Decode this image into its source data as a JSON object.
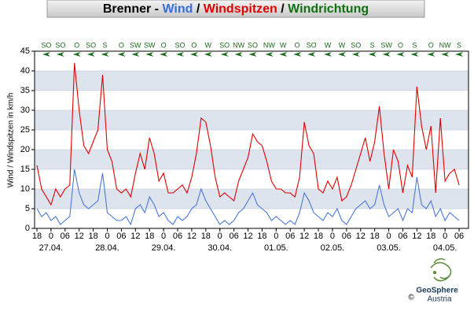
{
  "chart_data": {
    "type": "line",
    "title_parts": [
      {
        "text": "Brenner",
        "color": "#000000"
      },
      {
        "text": " - ",
        "color": "#000000"
      },
      {
        "text": "Wind",
        "color": "#3a6fd8"
      },
      {
        "text": " / ",
        "color": "#000000"
      },
      {
        "text": "Windspitzen",
        "color": "#e00000"
      },
      {
        "text": " / ",
        "color": "#000000"
      },
      {
        "text": "Windrichtung",
        "color": "#107010"
      }
    ],
    "y_label": "Wind / Windspitzen in km/h",
    "x": [
      0,
      2,
      4,
      6,
      8,
      10,
      12,
      14,
      16,
      18,
      20,
      22,
      24,
      26,
      28,
      30,
      32,
      34,
      36,
      38,
      40,
      42,
      44,
      46,
      48,
      50,
      52,
      54,
      56,
      58,
      60,
      62,
      64,
      66,
      68,
      70,
      72,
      74,
      76,
      78,
      80,
      82,
      84,
      86,
      88,
      90,
      92,
      94,
      96,
      98,
      100,
      102,
      104,
      106,
      108,
      110,
      112,
      114,
      116,
      118,
      120,
      122,
      124,
      126,
      128,
      130,
      132,
      134,
      136,
      138,
      140,
      142,
      144,
      146,
      148,
      150,
      152,
      154,
      156,
      158,
      160,
      162,
      164,
      166,
      168,
      170,
      172,
      174,
      176,
      178,
      180
    ],
    "series": [
      {
        "name": "Windspitzen",
        "color": "#e00000",
        "values": [
          16,
          10,
          8,
          6,
          10,
          8,
          10,
          11,
          42,
          30,
          21,
          19,
          22,
          25,
          39,
          20,
          17,
          10,
          9,
          10,
          8,
          14,
          19,
          15,
          23,
          19,
          12,
          14,
          9,
          9,
          10,
          11,
          9,
          13,
          19,
          28,
          27,
          21,
          13,
          8,
          9,
          8,
          7,
          12,
          15,
          18,
          24,
          22,
          21,
          17,
          12,
          10,
          10,
          9,
          9,
          8,
          13,
          27,
          21,
          19,
          10,
          9,
          12,
          10,
          13,
          7,
          8,
          11,
          15,
          19,
          23,
          17,
          22,
          31,
          19,
          10,
          20,
          17,
          9,
          16,
          13,
          36,
          26,
          20,
          26,
          9,
          28,
          12,
          14,
          15,
          11
        ]
      },
      {
        "name": "Wind",
        "color": "#4a78d8",
        "values": [
          5,
          3,
          4,
          2,
          3,
          1,
          2,
          3,
          15,
          9,
          6,
          5,
          6,
          7,
          14,
          4,
          3,
          2,
          2,
          3,
          1,
          5,
          6,
          4,
          8,
          6,
          3,
          4,
          2,
          1,
          3,
          2,
          3,
          5,
          6,
          10,
          7,
          5,
          3,
          1,
          2,
          1,
          2,
          4,
          5,
          7,
          9,
          6,
          5,
          4,
          2,
          3,
          2,
          1,
          2,
          1,
          4,
          9,
          7,
          4,
          3,
          2,
          4,
          3,
          5,
          2,
          1,
          3,
          5,
          6,
          7,
          5,
          6,
          11,
          6,
          3,
          4,
          5,
          2,
          5,
          4,
          13,
          6,
          5,
          7,
          3,
          5,
          2,
          4,
          3,
          2
        ]
      }
    ],
    "xlim": [
      -1,
      184
    ],
    "xticks": [
      {
        "value": 0,
        "label": "18"
      },
      {
        "value": 6,
        "label": "0"
      },
      {
        "value": 12,
        "label": "06"
      },
      {
        "value": 18,
        "label": "12"
      },
      {
        "value": 24,
        "label": "18"
      },
      {
        "value": 30,
        "label": "0"
      },
      {
        "value": 36,
        "label": "06"
      },
      {
        "value": 42,
        "label": "12"
      },
      {
        "value": 48,
        "label": "18"
      },
      {
        "value": 54,
        "label": "0"
      },
      {
        "value": 60,
        "label": "06"
      },
      {
        "value": 66,
        "label": "12"
      },
      {
        "value": 72,
        "label": "18"
      },
      {
        "value": 78,
        "label": "0"
      },
      {
        "value": 84,
        "label": "06"
      },
      {
        "value": 90,
        "label": "12"
      },
      {
        "value": 96,
        "label": "18"
      },
      {
        "value": 102,
        "label": "0"
      },
      {
        "value": 108,
        "label": "06"
      },
      {
        "value": 114,
        "label": "12"
      },
      {
        "value": 120,
        "label": "18"
      },
      {
        "value": 126,
        "label": "0"
      },
      {
        "value": 132,
        "label": "06"
      },
      {
        "value": 138,
        "label": "12"
      },
      {
        "value": 144,
        "label": "18"
      },
      {
        "value": 150,
        "label": "0"
      },
      {
        "value": 156,
        "label": "06"
      },
      {
        "value": 162,
        "label": "12"
      },
      {
        "value": 168,
        "label": "18"
      },
      {
        "value": 174,
        "label": "0"
      },
      {
        "value": 180,
        "label": "06"
      }
    ],
    "date_ticks": [
      {
        "value": 6,
        "label": "27.04."
      },
      {
        "value": 30,
        "label": "28.04."
      },
      {
        "value": 54,
        "label": "29.04."
      },
      {
        "value": 78,
        "label": "30.04."
      },
      {
        "value": 102,
        "label": "01.05."
      },
      {
        "value": 126,
        "label": "02.05."
      },
      {
        "value": 150,
        "label": "03.05."
      },
      {
        "value": 174,
        "label": "04.05."
      }
    ],
    "ylim": [
      0,
      45
    ],
    "yticks": [
      0,
      5,
      10,
      15,
      20,
      25,
      30,
      35,
      40,
      45
    ],
    "grid": true,
    "wind_direction": {
      "color": "#1a6a1a",
      "x": [
        4,
        10,
        17,
        23,
        29,
        36,
        42,
        48,
        54,
        61,
        67,
        73,
        80,
        86,
        92,
        99,
        105,
        111,
        117,
        124,
        130,
        136,
        143,
        149,
        155,
        161,
        168,
        174,
        180
      ],
      "labels": [
        "SO",
        "SO",
        "O",
        "SO",
        "S",
        "O",
        "SW",
        "SW",
        "O",
        "SO",
        "O",
        "W",
        "SO",
        "NW",
        "SO",
        "NW",
        "W",
        "O",
        "SO",
        "W",
        "W",
        "SO",
        "S",
        "SW",
        "O",
        "S",
        "O",
        "NW",
        "S"
      ]
    },
    "logo": {
      "name": "GeoSphere",
      "sub": "Austria",
      "copyright": "©"
    }
  }
}
